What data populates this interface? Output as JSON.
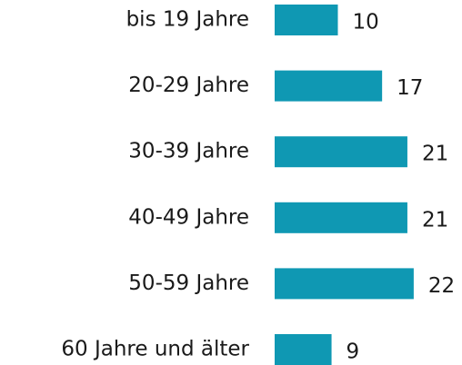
{
  "chart_data": {
    "type": "bar",
    "orientation": "horizontal",
    "categories": [
      "bis 19 Jahre",
      "20-29 Jahre",
      "30-39 Jahre",
      "40-49 Jahre",
      "50-59 Jahre",
      "60 Jahre und älter"
    ],
    "values": [
      10,
      17,
      21,
      21,
      22,
      9
    ],
    "color": "#0f98b3"
  }
}
